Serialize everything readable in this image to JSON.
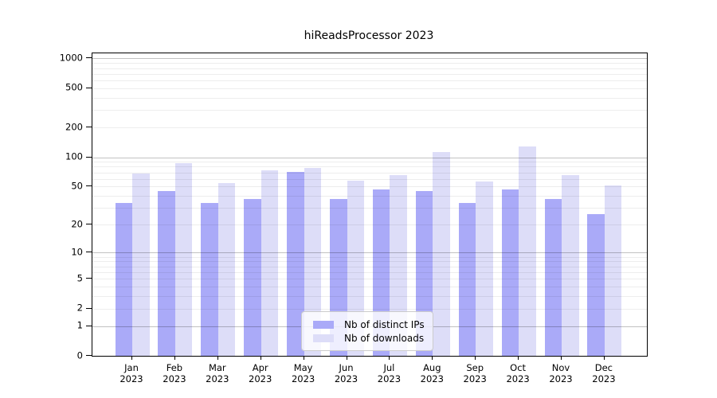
{
  "title": "hiReadsProcessor 2023",
  "chart_data": {
    "type": "bar",
    "title": "hiReadsProcessor 2023",
    "categories": [
      "Jan 2023",
      "Feb 2023",
      "Mar 2023",
      "Apr 2023",
      "May 2023",
      "Jun 2023",
      "Jul 2023",
      "Aug 2023",
      "Sep 2023",
      "Oct 2023",
      "Nov 2023",
      "Dec 2023"
    ],
    "series": [
      {
        "name": "Nb of distinct IPs",
        "color": "#aaaaf8",
        "values": [
          34,
          45,
          34,
          37,
          71,
          37,
          47,
          45,
          34,
          47,
          37,
          26
        ]
      },
      {
        "name": "Nb of downloads",
        "color": "#ddddf8",
        "values": [
          68,
          87,
          54,
          74,
          78,
          58,
          66,
          113,
          56,
          128,
          66,
          51
        ]
      }
    ],
    "xlabel": "",
    "ylabel": "",
    "yscale": "log10(1+x)",
    "yticks": [
      0,
      1,
      2,
      5,
      10,
      20,
      50,
      100,
      200,
      500,
      1000
    ],
    "ylim": [
      0,
      1130
    ],
    "grid": "horizontal, minor lines each decade step, major at 1/10/100/1000",
    "legend_position": "inside-bottom-center",
    "gridline_major_color": "#c2c2c2",
    "gridline_minor_color": "#ededed",
    "axis_color": "#000000"
  }
}
